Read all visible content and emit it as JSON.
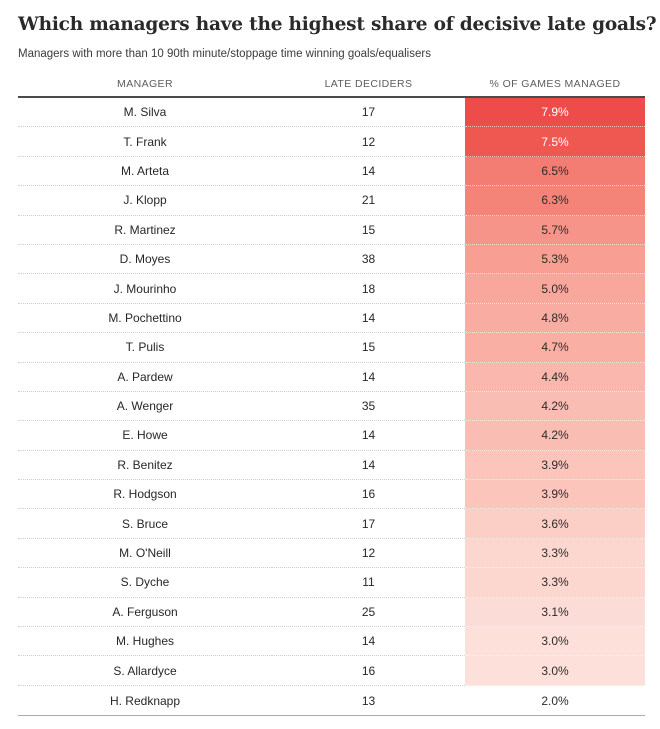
{
  "page": {
    "title": "Which managers have the highest share of decisive late goals?",
    "subtitle": "Managers with more than 10 90th minute/stoppage time winning goals/equalisers"
  },
  "table": {
    "columns": [
      {
        "key": "manager",
        "label": "MANAGER"
      },
      {
        "key": "late_deciders",
        "label": "LATE DECIDERS"
      },
      {
        "key": "pct_games_managed",
        "label": "% OF GAMES MANAGED"
      }
    ],
    "rows": [
      {
        "manager": "M. Silva",
        "late_deciders": "17",
        "pct": "7.9%",
        "cell_color": "#ee4b4b",
        "pct_text_color": "#ffffff"
      },
      {
        "manager": "T. Frank",
        "late_deciders": "12",
        "pct": "7.5%",
        "cell_color": "#ef5751",
        "pct_text_color": "#ffffff"
      },
      {
        "manager": "M. Arteta",
        "late_deciders": "14",
        "pct": "6.5%",
        "cell_color": "#f37d72",
        "pct_text_color": "#2f2b2a"
      },
      {
        "manager": "J. Klopp",
        "late_deciders": "21",
        "pct": "6.3%",
        "cell_color": "#f48378",
        "pct_text_color": "#2f2b2a"
      },
      {
        "manager": "R. Martinez",
        "late_deciders": "15",
        "pct": "5.7%",
        "cell_color": "#f79489",
        "pct_text_color": "#2f2b2a"
      },
      {
        "manager": "D. Moyes",
        "late_deciders": "38",
        "pct": "5.3%",
        "cell_color": "#f89e93",
        "pct_text_color": "#2f2b2a"
      },
      {
        "manager": "J. Mourinho",
        "late_deciders": "18",
        "pct": "5.0%",
        "cell_color": "#f9a79c",
        "pct_text_color": "#2f2b2a"
      },
      {
        "manager": "M. Pochettino",
        "late_deciders": "14",
        "pct": "4.8%",
        "cell_color": "#f9aca1",
        "pct_text_color": "#2f2b2a"
      },
      {
        "manager": "T. Pulis",
        "late_deciders": "15",
        "pct": "4.7%",
        "cell_color": "#f9afa4",
        "pct_text_color": "#2f2b2a"
      },
      {
        "manager": "A. Pardew",
        "late_deciders": "14",
        "pct": "4.4%",
        "cell_color": "#fab7ad",
        "pct_text_color": "#2f2b2a"
      },
      {
        "manager": "A. Wenger",
        "late_deciders": "35",
        "pct": "4.2%",
        "cell_color": "#fabdb3",
        "pct_text_color": "#2f2b2a"
      },
      {
        "manager": "E. Howe",
        "late_deciders": "14",
        "pct": "4.2%",
        "cell_color": "#fabdb3",
        "pct_text_color": "#2f2b2a"
      },
      {
        "manager": "R. Benitez",
        "late_deciders": "14",
        "pct": "3.9%",
        "cell_color": "#fbc5bc",
        "pct_text_color": "#2f2b2a"
      },
      {
        "manager": "R. Hodgson",
        "late_deciders": "16",
        "pct": "3.9%",
        "cell_color": "#fbc5bc",
        "pct_text_color": "#2f2b2a"
      },
      {
        "manager": "S. Bruce",
        "late_deciders": "17",
        "pct": "3.6%",
        "cell_color": "#fbcec6",
        "pct_text_color": "#2f2b2a"
      },
      {
        "manager": "M. O'Neill",
        "late_deciders": "12",
        "pct": "3.3%",
        "cell_color": "#fcd7d0",
        "pct_text_color": "#2f2b2a"
      },
      {
        "manager": "S. Dyche",
        "late_deciders": "11",
        "pct": "3.3%",
        "cell_color": "#fcd7d0",
        "pct_text_color": "#2f2b2a"
      },
      {
        "manager": "A. Ferguson",
        "late_deciders": "25",
        "pct": "3.1%",
        "cell_color": "#fcdcd6",
        "pct_text_color": "#2f2b2a"
      },
      {
        "manager": "M. Hughes",
        "late_deciders": "14",
        "pct": "3.0%",
        "cell_color": "#fde0da",
        "pct_text_color": "#2f2b2a"
      },
      {
        "manager": "S. Allardyce",
        "late_deciders": "16",
        "pct": "3.0%",
        "cell_color": "#fde0da",
        "pct_text_color": "#2f2b2a"
      },
      {
        "manager": "H. Redknapp",
        "late_deciders": "13",
        "pct": "2.0%",
        "cell_color": "#ffffff",
        "pct_text_color": "#2f2b2a"
      }
    ]
  },
  "chart_data": {
    "type": "table",
    "title": "Which managers have the highest share of decisive late goals?",
    "subtitle": "Managers with more than 10 90th minute/stoppage time winning goals/equalisers",
    "columns": [
      "MANAGER",
      "LATE DECIDERS",
      "% OF GAMES MANAGED"
    ],
    "categories": [
      "M. Silva",
      "T. Frank",
      "M. Arteta",
      "J. Klopp",
      "R. Martinez",
      "D. Moyes",
      "J. Mourinho",
      "M. Pochettino",
      "T. Pulis",
      "A. Pardew",
      "A. Wenger",
      "E. Howe",
      "R. Benitez",
      "R. Hodgson",
      "S. Bruce",
      "M. O'Neill",
      "S. Dyche",
      "A. Ferguson",
      "M. Hughes",
      "S. Allardyce",
      "H. Redknapp"
    ],
    "series": [
      {
        "name": "Late deciders",
        "values": [
          17,
          12,
          14,
          21,
          15,
          38,
          18,
          14,
          15,
          14,
          35,
          14,
          14,
          16,
          17,
          12,
          11,
          25,
          14,
          16,
          13
        ]
      },
      {
        "name": "% of games managed",
        "values": [
          7.9,
          7.5,
          6.5,
          6.3,
          5.7,
          5.3,
          5.0,
          4.8,
          4.7,
          4.4,
          4.2,
          4.2,
          3.9,
          3.9,
          3.6,
          3.3,
          3.3,
          3.1,
          3.0,
          3.0,
          2.0
        ]
      }
    ],
    "heatmap_column": "% OF GAMES MANAGED",
    "heat_scale": {
      "max_color": "#ee4b4b",
      "min_color": "#ffffff"
    },
    "sorted": "descending by % of games managed",
    "layout": {
      "heatmap_on_last_column": true,
      "row_separators": "dotted"
    }
  }
}
